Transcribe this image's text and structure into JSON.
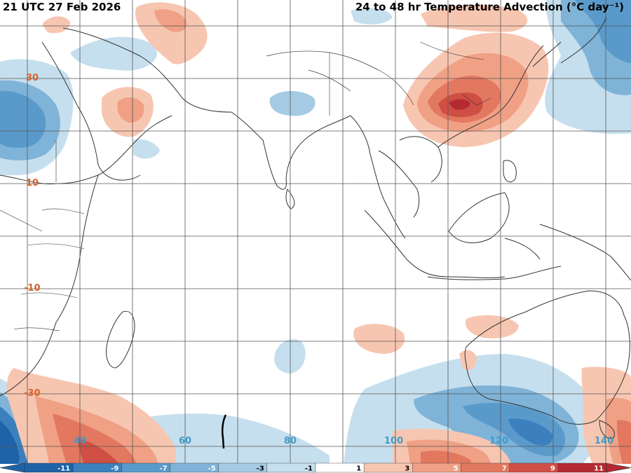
{
  "header": {
    "valid_time": "21 UTC 27 Feb 2026",
    "title": "24 to 48 hr Temperature Advection (°C day⁻¹)"
  },
  "grid": {
    "lat_labels": [
      "30",
      "10",
      "-10",
      "-30"
    ],
    "lon_labels": [
      "40",
      "60",
      "80",
      "100",
      "120",
      "140"
    ]
  },
  "colorbar": {
    "ticks": [
      "-11",
      "-9",
      "-7",
      "-5",
      "-3",
      "-1",
      "1",
      "3",
      "5",
      "7",
      "9",
      "11"
    ],
    "colors": [
      "#1e63a8",
      "#3b80bd",
      "#5a9acb",
      "#7fb3d8",
      "#a5cbe4",
      "#c6dfee",
      "#ffffff",
      "#f7c6b1",
      "#f0a085",
      "#e37860",
      "#cf4f44",
      "#b32a33"
    ]
  },
  "legend_colors": {
    "cold": "#3b80bd",
    "warm": "#cf4f44"
  }
}
